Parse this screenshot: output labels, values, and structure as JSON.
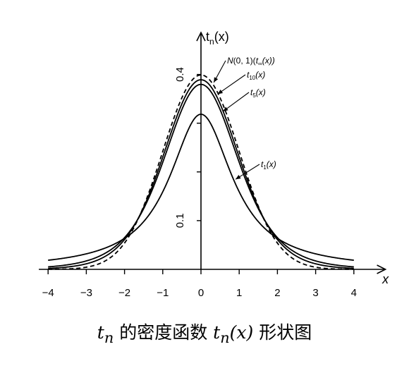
{
  "chart_data": {
    "type": "line",
    "xlabel": "x",
    "ylabel": "t",
    "ylabel_sub": "n",
    "ylabel_suffix": "(x)",
    "xlim": [
      -4.15,
      4.9
    ],
    "ylim": [
      0,
      0.46
    ],
    "x_ticks": [
      {
        "value": -4,
        "label": "−4"
      },
      {
        "value": -3,
        "label": "−3"
      },
      {
        "value": -2,
        "label": "−2"
      },
      {
        "value": -1,
        "label": "−1"
      },
      {
        "value": 0,
        "label": "0"
      },
      {
        "value": 1,
        "label": "1"
      },
      {
        "value": 2,
        "label": "2"
      },
      {
        "value": 3,
        "label": "3"
      },
      {
        "value": 4,
        "label": "4"
      }
    ],
    "y_ticks": [
      {
        "value": 0.1,
        "label": "0.1"
      },
      {
        "value": 0.2,
        "label": ""
      },
      {
        "value": 0.3,
        "label": ""
      },
      {
        "value": 0.4,
        "label": "0.4"
      }
    ],
    "x_range_curves": [
      -4,
      4
    ],
    "series": [
      {
        "name": "N(0, 1)(t∞(x))",
        "df": null,
        "dashed": true,
        "label_x": 0.28
      },
      {
        "name": "t10(x)",
        "df": 10,
        "dashed": false,
        "label_x": 0.38
      },
      {
        "name": "t5(x)",
        "df": 5,
        "dashed": false,
        "label_x": 0.52
      },
      {
        "name": "t1(x)",
        "df": 1,
        "dashed": false,
        "label_x": 0.85
      }
    ],
    "curve_labels": [
      {
        "main": "N",
        "rest": "(0, 1)(",
        "sub_prefix": "t",
        "sub": "∞",
        "tail": "(x))"
      },
      {
        "main": "t",
        "sub": "10",
        "tail": "(x)"
      },
      {
        "main": "t",
        "sub": "5",
        "tail": "(x)"
      },
      {
        "main": "t",
        "sub": "1",
        "tail": "(x)"
      }
    ]
  },
  "caption": {
    "t": "t",
    "n": "n",
    "text": " 的密度函数 ",
    "func": "t",
    "func_sub": "n",
    "func_arg": "(x)",
    "tail": " 形状图"
  }
}
